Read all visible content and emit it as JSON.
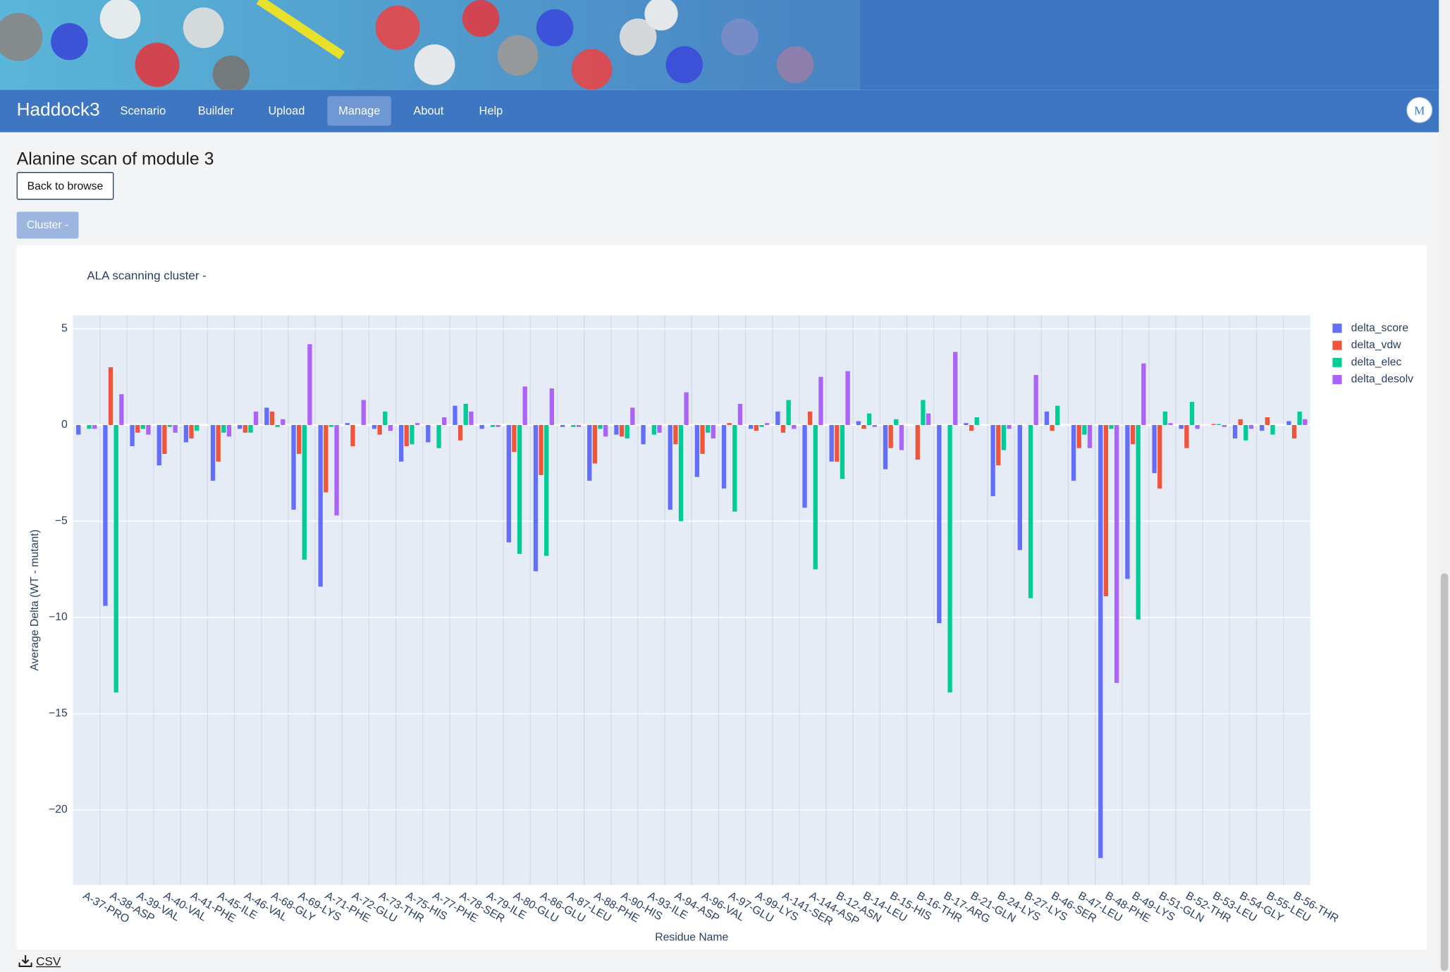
{
  "nav": {
    "brand": "Haddock3",
    "items": [
      "Scenario",
      "Builder",
      "Upload",
      "Manage",
      "About",
      "Help"
    ],
    "active": "Manage",
    "user": "M"
  },
  "page": {
    "title": "Alanine scan of module 3",
    "back_button": "Back to browse",
    "cluster_button": "Cluster -",
    "download": "CSV"
  },
  "chart_data": {
    "type": "bar",
    "title": "ALA scanning cluster -",
    "x_label": "Residue Name",
    "y_label": "Average Delta (WT - mutant)",
    "categories": [
      "A-37-PRO",
      "A-38-ASP",
      "A-39-VAL",
      "A-40-VAL",
      "A-41-PHE",
      "A-45-ILE",
      "A-46-VAL",
      "A-68-GLY",
      "A-69-LYS",
      "A-71-PHE",
      "A-72-GLU",
      "A-73-THR",
      "A-75-HIS",
      "A-77-PHE",
      "A-78-SER",
      "A-79-ILE",
      "A-80-GLU",
      "A-86-GLU",
      "A-87-LEU",
      "A-88-PHE",
      "A-90-HIS",
      "A-93-ILE",
      "A-94-ASP",
      "A-96-VAL",
      "A-97-GLU",
      "A-99-LYS",
      "A-141-SER",
      "A-144-ASP",
      "B-12-ASN",
      "B-14-LEU",
      "B-15-HIS",
      "B-16-THR",
      "B-17-ARG",
      "B-21-GLN",
      "B-24-LYS",
      "B-27-LYS",
      "B-46-SER",
      "B-47-LEU",
      "B-48-PHE",
      "B-49-LYS",
      "B-51-GLN",
      "B-52-THR",
      "B-53-LEU",
      "B-54-GLY",
      "B-55-LEU",
      "B-56-THR"
    ],
    "series": [
      {
        "name": "delta_score",
        "color": "#636efa",
        "values": [
          -0.5,
          -9.4,
          -1.1,
          -2.1,
          -0.9,
          -2.9,
          -0.2,
          0.9,
          -4.4,
          -8.4,
          0.1,
          -0.2,
          -1.9,
          -0.9,
          1.0,
          -0.2,
          -6.1,
          -7.6,
          -0.1,
          -2.9,
          -0.5,
          -1.0,
          -4.4,
          -2.7,
          -3.3,
          -0.2,
          0.7,
          -4.3,
          -1.9,
          0.2,
          -2.3,
          0,
          -10.3,
          0.1,
          -3.7,
          -6.5,
          0.7,
          -2.9,
          -22.5,
          -8.0,
          -2.5,
          -0.2,
          0,
          -0.7,
          -0.3,
          0.2
        ]
      },
      {
        "name": "delta_vdw",
        "color": "#ef553b",
        "values": [
          0,
          3.0,
          -0.4,
          -1.5,
          -0.7,
          -1.9,
          -0.4,
          0.7,
          -1.5,
          -3.5,
          -1.1,
          -0.5,
          -1.1,
          0,
          -0.8,
          0,
          -1.4,
          -2.6,
          0,
          -2.0,
          -0.6,
          0,
          -1.0,
          -1.5,
          0.1,
          -0.3,
          -0.4,
          0.7,
          -1.9,
          -0.2,
          -1.2,
          -1.8,
          0,
          -0.3,
          -2.1,
          0,
          -0.3,
          -1.2,
          -8.9,
          -1.0,
          -3.3,
          -1.2,
          0.05,
          0.3,
          0.4,
          -0.7
        ]
      },
      {
        "name": "delta_elec",
        "color": "#00cc96",
        "values": [
          -0.2,
          -13.9,
          -0.2,
          -0.1,
          -0.3,
          -0.4,
          -0.4,
          -0.1,
          -7.0,
          -0.1,
          0,
          0.7,
          -1.0,
          -1.2,
          1.1,
          -0.1,
          -6.7,
          -6.8,
          -0.1,
          -0.2,
          -0.7,
          -0.5,
          -5.0,
          -0.4,
          -4.5,
          -0.1,
          1.3,
          -7.5,
          -2.8,
          0.6,
          0.3,
          1.3,
          -13.9,
          0.4,
          -1.3,
          -9.0,
          1.0,
          -0.5,
          -0.2,
          -10.1,
          0.7,
          1.2,
          0.05,
          -0.8,
          -0.5,
          0.7
        ]
      },
      {
        "name": "delta_desolv",
        "color": "#ab63fa",
        "values": [
          -0.2,
          1.6,
          -0.5,
          -0.4,
          0,
          -0.6,
          0.7,
          0.3,
          4.2,
          -4.7,
          1.3,
          -0.3,
          0.1,
          0.4,
          0.7,
          -0.1,
          2.0,
          1.9,
          -0.1,
          -0.6,
          0.9,
          -0.4,
          1.7,
          -0.7,
          1.1,
          0.1,
          -0.2,
          2.5,
          2.8,
          -0.1,
          -1.3,
          0.6,
          3.8,
          0,
          -0.2,
          2.6,
          0,
          -1.2,
          -13.4,
          3.2,
          0.1,
          -0.2,
          -0.1,
          -0.2,
          0,
          0.3
        ]
      }
    ],
    "ylim": [
      -23.9,
      5.7
    ],
    "yticks": [
      {
        "value": -20,
        "label": "−20"
      },
      {
        "value": -15,
        "label": "−15"
      },
      {
        "value": -10,
        "label": "−10"
      },
      {
        "value": -5,
        "label": "−5"
      },
      0,
      5
    ],
    "grid": true,
    "legend": "right"
  }
}
